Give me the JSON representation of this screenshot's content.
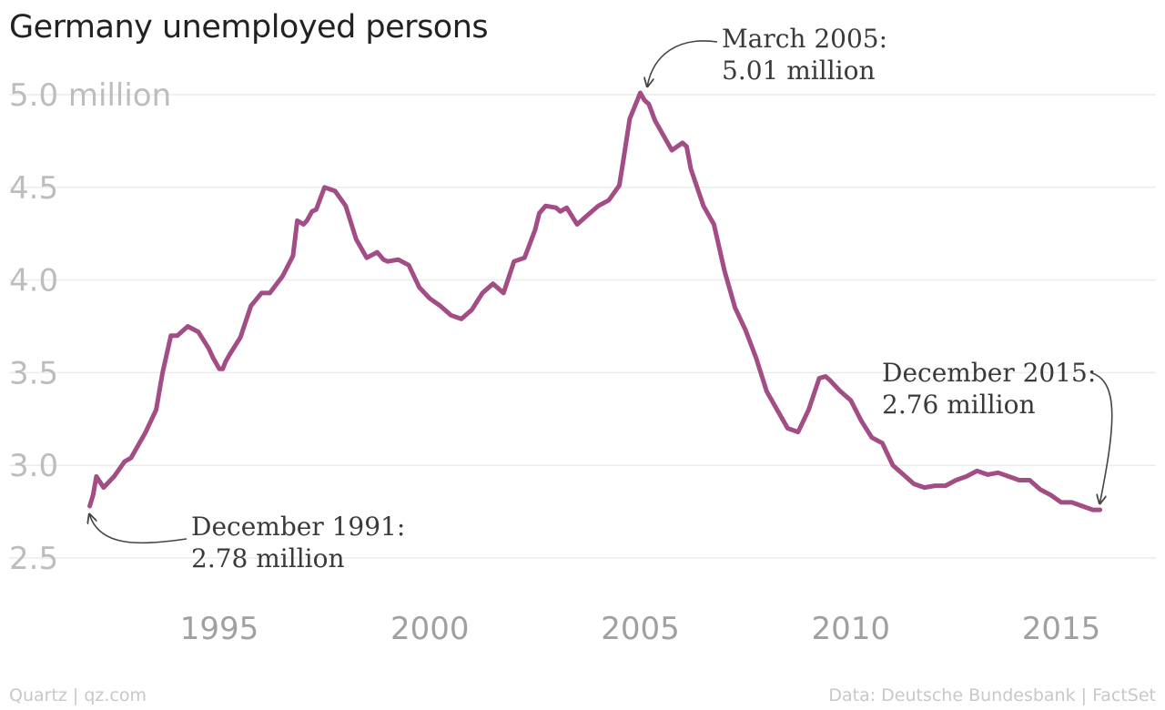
{
  "title": "Germany unemployed persons",
  "footer": {
    "credit": "Quartz | qz.com",
    "source": "Data: Deutsche Bundesbank | FactSet"
  },
  "chart_data": {
    "type": "line",
    "title": "Germany unemployed persons",
    "xlabel": "",
    "ylabel": "",
    "xlim": [
      1991.3,
      2016.8
    ],
    "ylim": [
      2.5,
      5.0
    ],
    "y_ticks": [
      {
        "value": 5.0,
        "label": "5.0 million"
      },
      {
        "value": 4.5,
        "label": "4.5"
      },
      {
        "value": 4.0,
        "label": "4.0"
      },
      {
        "value": 3.5,
        "label": "3.5"
      },
      {
        "value": 3.0,
        "label": "3.0"
      },
      {
        "value": 2.5,
        "label": "2.5"
      }
    ],
    "x_ticks": [
      {
        "value": 1995,
        "label": "1995"
      },
      {
        "value": 2000,
        "label": "2000"
      },
      {
        "value": 2005,
        "label": "2005"
      },
      {
        "value": 2010,
        "label": "2010"
      },
      {
        "value": 2015,
        "label": "2015"
      }
    ],
    "grid": true,
    "color": "#a24d85",
    "series": [
      {
        "x": [
          1991.92,
          1992.0,
          1992.08,
          1992.25,
          1992.5,
          1992.75,
          1992.9,
          1993.25,
          1993.5,
          1993.65,
          1993.85,
          1994.0,
          1994.15,
          1994.25,
          1994.5,
          1994.75,
          1994.85,
          1995.0,
          1995.08,
          1995.15,
          1995.25,
          1995.5,
          1995.75,
          1996.0,
          1996.2,
          1996.3,
          1996.5,
          1996.75,
          1996.85,
          1997.0,
          1997.08,
          1997.2,
          1997.3,
          1997.5,
          1997.75,
          1998.0,
          1998.25,
          1998.5,
          1998.75,
          1998.9,
          1999.0,
          1999.25,
          1999.5,
          1999.75,
          2000.0,
          2000.25,
          2000.5,
          2000.75,
          2001.0,
          2001.25,
          2001.5,
          2001.75,
          2002.0,
          2002.25,
          2002.5,
          2002.6,
          2002.75,
          2003.0,
          2003.1,
          2003.25,
          2003.5,
          2003.75,
          2004.0,
          2004.25,
          2004.5,
          2004.6,
          2004.75,
          2005.0,
          2005.1,
          2005.2,
          2005.25,
          2005.35,
          2005.5,
          2005.75,
          2006.0,
          2006.1,
          2006.2,
          2006.5,
          2006.75,
          2007.0,
          2007.25,
          2007.5,
          2007.75,
          2008.0,
          2008.25,
          2008.5,
          2008.75,
          2009.0,
          2009.25,
          2009.4,
          2009.5,
          2009.75,
          2010.0,
          2010.25,
          2010.5,
          2010.75,
          2011.0,
          2011.25,
          2011.5,
          2011.75,
          2012.0,
          2012.25,
          2012.5,
          2012.75,
          2013.0,
          2013.25,
          2013.5,
          2013.75,
          2014.0,
          2014.25,
          2014.5,
          2014.75,
          2015.0,
          2015.25,
          2015.5,
          2015.75,
          2015.92
        ],
        "y": [
          2.78,
          2.84,
          2.94,
          2.88,
          2.94,
          3.02,
          3.04,
          3.18,
          3.3,
          3.5,
          3.7,
          3.7,
          3.73,
          3.75,
          3.72,
          3.63,
          3.58,
          3.52,
          3.52,
          3.56,
          3.6,
          3.69,
          3.86,
          3.93,
          3.93,
          3.96,
          4.02,
          4.13,
          4.32,
          4.3,
          4.32,
          4.37,
          4.38,
          4.5,
          4.48,
          4.4,
          4.22,
          4.12,
          4.15,
          4.11,
          4.1,
          4.11,
          4.08,
          3.96,
          3.9,
          3.86,
          3.81,
          3.79,
          3.84,
          3.93,
          3.98,
          3.93,
          4.1,
          4.12,
          4.27,
          4.36,
          4.4,
          4.39,
          4.37,
          4.39,
          4.3,
          4.35,
          4.4,
          4.43,
          4.51,
          4.65,
          4.87,
          5.01,
          4.97,
          4.95,
          4.92,
          4.86,
          4.8,
          4.7,
          4.74,
          4.72,
          4.6,
          4.4,
          4.3,
          4.05,
          3.85,
          3.73,
          3.58,
          3.4,
          3.3,
          3.2,
          3.18,
          3.3,
          3.47,
          3.48,
          3.46,
          3.4,
          3.35,
          3.24,
          3.15,
          3.12,
          3.0,
          2.95,
          2.9,
          2.88,
          2.89,
          2.89,
          2.92,
          2.94,
          2.97,
          2.95,
          2.96,
          2.94,
          2.92,
          2.92,
          2.87,
          2.84,
          2.8,
          2.8,
          2.78,
          2.76,
          2.76
        ]
      }
    ],
    "annotations": [
      {
        "label": "December 1991:",
        "value_text": "2.78 million",
        "x": 1991.92,
        "y": 2.78
      },
      {
        "label": "March 2005:",
        "value_text": "5.01 million",
        "x": 2005.17,
        "y": 5.01
      },
      {
        "label": "December 2015:",
        "value_text": "2.76 million",
        "x": 2015.92,
        "y": 2.76
      }
    ]
  }
}
